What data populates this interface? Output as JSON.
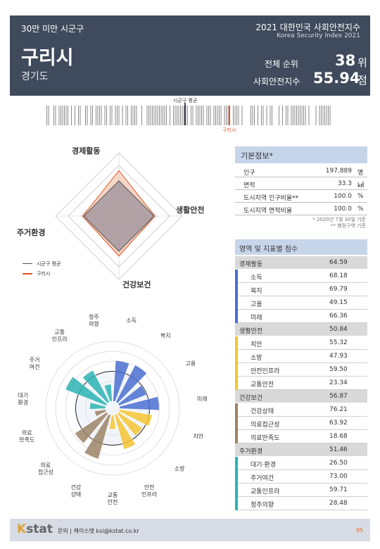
{
  "header": {
    "tag": "30만 미만 시군구",
    "report_title": "2021 대한민국 사회안전지수",
    "report_subtitle": "Korea Security Index 2021",
    "city": "구리시",
    "province": "경기도",
    "rank_label": "전체 순위",
    "rank_value": "38",
    "rank_unit": "위",
    "score_label": "사회안전지수",
    "score_value": "55.94",
    "score_unit": "점"
  },
  "barcode": {
    "avg_label": "시군구 평균",
    "city_label": "구리시"
  },
  "radar": {
    "labels": [
      "경제활동",
      "생활안전",
      "건강보건",
      "주거환경"
    ],
    "legend_avg": "시군구 평균",
    "legend_city": "구리시",
    "avg_color": "#555555",
    "city_color": "#e2531f"
  },
  "basic_info": {
    "title": "기본정보*",
    "rows": [
      {
        "label": "인구",
        "value": "197,889",
        "unit": "명"
      },
      {
        "label": "면적",
        "value": "33.3",
        "unit": "㎢"
      },
      {
        "label": "도시지역 인구비율**",
        "value": "100.0",
        "unit": "%"
      },
      {
        "label": "도시지역 면적비율",
        "value": "100.0",
        "unit": "%"
      }
    ],
    "note1": "* 2020년 7월 30일 기준",
    "note2": "** 행정구역 기준"
  },
  "scores": {
    "title": "영역 및 지표별 점수",
    "categories": [
      {
        "name": "경제활동",
        "score": "64.59",
        "color": "#4a6fd0",
        "items": [
          {
            "name": "소득",
            "score": "68.18"
          },
          {
            "name": "복지",
            "score": "69.79"
          },
          {
            "name": "고용",
            "score": "49.15"
          },
          {
            "name": "미래",
            "score": "66.36"
          }
        ]
      },
      {
        "name": "생활안전",
        "score": "50.84",
        "color": "#f4c430",
        "items": [
          {
            "name": "치안",
            "score": "55.32"
          },
          {
            "name": "소방",
            "score": "47.93"
          },
          {
            "name": "안전인프라",
            "score": "59.50"
          },
          {
            "name": "교통안전",
            "score": "23.34"
          }
        ]
      },
      {
        "name": "건강보건",
        "score": "56.87",
        "color": "#9c8466",
        "items": [
          {
            "name": "건강상태",
            "score": "76.21"
          },
          {
            "name": "의료접근성",
            "score": "63.92"
          },
          {
            "name": "의료만족도",
            "score": "18.68"
          }
        ]
      },
      {
        "name": "주거환경",
        "score": "51.46",
        "color": "#2bb3b1",
        "items": [
          {
            "name": "대기·환경",
            "score": "26.50"
          },
          {
            "name": "주거여건",
            "score": "73.00"
          },
          {
            "name": "교통인프라",
            "score": "59.71"
          },
          {
            "name": "정주의향",
            "score": "28.48"
          }
        ]
      }
    ]
  },
  "polar": {
    "labels": [
      "소득",
      "복지",
      "고용",
      "미래",
      "치안",
      "소방",
      "안전\n인프라",
      "교통\n안전",
      "건강\n상태",
      "의료\n접근성",
      "의료\n만족도",
      "대기\n환경",
      "주거\n여건",
      "교통\n인프라",
      "정주\n의향"
    ],
    "values": [
      68.18,
      69.79,
      49.15,
      66.36,
      55.32,
      47.93,
      59.5,
      23.34,
      76.21,
      63.92,
      18.68,
      26.5,
      73.0,
      59.71,
      28.48
    ]
  },
  "footer": {
    "logo_k": "K",
    "logo_rest": "stat",
    "contact": "문의 | 케이스탯 ksi@kstat.co.kr",
    "page": "95"
  }
}
